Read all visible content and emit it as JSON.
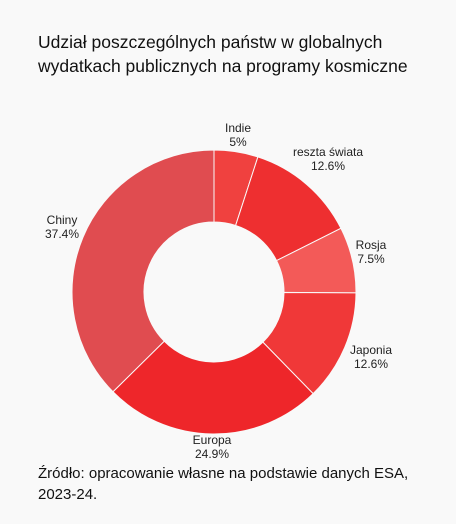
{
  "title_lines": [
    "Udział poszczególnych państw w globalnych",
    "wydatkach publicznych na programy kosmiczne"
  ],
  "source_lines": [
    "Źródło: opracowanie własne na podstawie danych ESA,",
    "2023-24."
  ],
  "chart_data": {
    "type": "pie",
    "donut": true,
    "title": "Udział poszczególnych państw w globalnych wydatkach publicznych na programy kosmiczne",
    "slices": [
      {
        "name": "Indie",
        "value": 5,
        "label": "5%",
        "color": "#f0413f"
      },
      {
        "name": "reszta świata",
        "value": 12.6,
        "label": "12.6%",
        "color": "#ee2f30"
      },
      {
        "name": "Rosja",
        "value": 7.5,
        "label": "7.5%",
        "color": "#f35a58"
      },
      {
        "name": "Japonia",
        "value": 12.6,
        "label": "12.6%",
        "color": "#f03838"
      },
      {
        "name": "Europa",
        "value": 24.9,
        "label": "24.9%",
        "color": "#ee262a"
      },
      {
        "name": "Chiny",
        "value": 37.4,
        "label": "37.4%",
        "color": "#e04c50"
      }
    ],
    "source": "Źródło: opracowanie własne na podstawie danych ESA, 2023-24."
  }
}
